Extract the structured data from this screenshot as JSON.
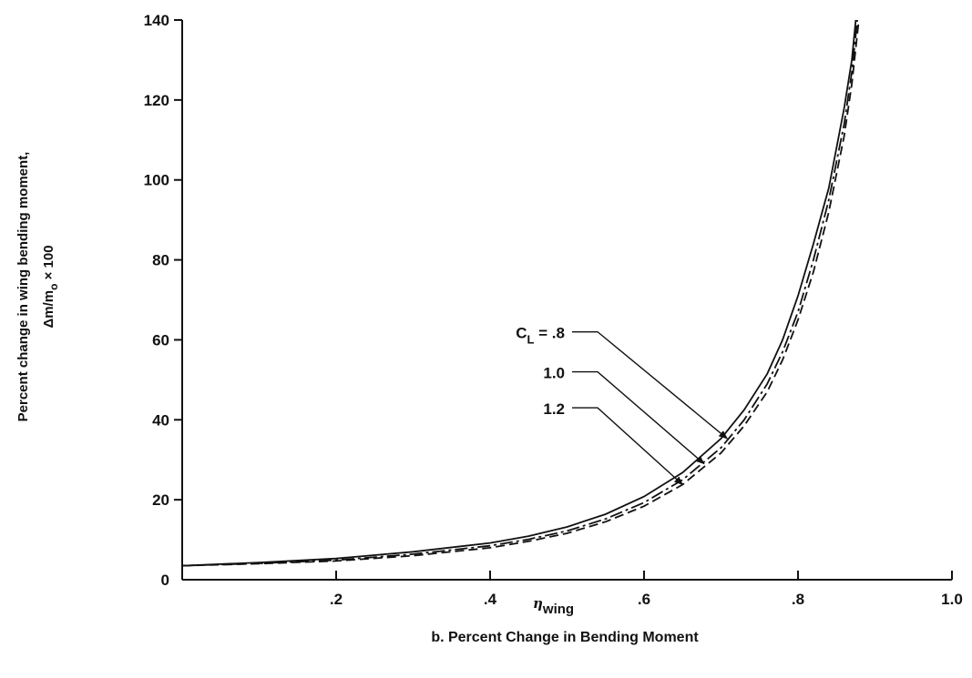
{
  "chart_data": {
    "type": "line",
    "xlim": [
      0,
      1.0
    ],
    "ylim": [
      0,
      140
    ],
    "x_ticks": [
      0.2,
      0.4,
      0.6,
      0.8,
      1.0
    ],
    "x_tick_labels": [
      ".2",
      ".4",
      ".6",
      ".8",
      "1.0"
    ],
    "y_ticks": [
      0,
      20,
      40,
      60,
      80,
      100,
      120,
      140
    ],
    "y_tick_labels": [
      "0",
      "20",
      "40",
      "60",
      "80",
      "100",
      "120",
      "140"
    ],
    "xlabel": {
      "symbol": "η",
      "subscript": "wing"
    },
    "ylabel": {
      "line1": "Percent change in wing bending moment,",
      "line2": "Δm/m",
      "line2_sub": "o",
      "line2_suffix": " × 100"
    },
    "caption": "b. Percent Change in Bending Moment",
    "grid": false,
    "series": [
      {
        "name": "C_L = .8",
        "label_prefix": "C",
        "label_sub": "L",
        "label_value": " = .8",
        "style": "solid",
        "x": [
          0,
          0.1,
          0.2,
          0.3,
          0.4,
          0.45,
          0.5,
          0.55,
          0.6,
          0.65,
          0.7,
          0.73,
          0.76,
          0.78,
          0.8,
          0.82,
          0.84,
          0.86,
          0.87,
          0.875
        ],
        "y": [
          3.5,
          4.3,
          5.3,
          7.0,
          9.2,
          10.9,
          13.2,
          16.4,
          20.8,
          26.8,
          35.3,
          42.5,
          51.5,
          60,
          71,
          84,
          98,
          118,
          130,
          140
        ]
      },
      {
        "name": "1.0",
        "label_prefix": "",
        "label_sub": "",
        "label_value": "1.0",
        "style": "dashdot",
        "x": [
          0,
          0.1,
          0.2,
          0.3,
          0.4,
          0.45,
          0.5,
          0.55,
          0.6,
          0.65,
          0.7,
          0.73,
          0.76,
          0.78,
          0.8,
          0.82,
          0.84,
          0.86,
          0.87,
          0.877
        ],
        "y": [
          3.5,
          4.1,
          4.9,
          6.4,
          8.5,
          10.1,
          12.2,
          15.2,
          19.3,
          25.0,
          33.0,
          40.0,
          49.0,
          57.0,
          67.0,
          80.0,
          95.0,
          114.0,
          127.0,
          140
        ]
      },
      {
        "name": "1.2",
        "label_prefix": "",
        "label_sub": "",
        "label_value": "1.2",
        "style": "dashed",
        "x": [
          0,
          0.1,
          0.2,
          0.3,
          0.4,
          0.45,
          0.5,
          0.55,
          0.6,
          0.65,
          0.7,
          0.73,
          0.76,
          0.78,
          0.8,
          0.82,
          0.84,
          0.86,
          0.87,
          0.879
        ],
        "y": [
          3.5,
          4.0,
          4.7,
          6.0,
          8.0,
          9.6,
          11.6,
          14.5,
          18.4,
          23.8,
          31.7,
          38.5,
          47.0,
          55.0,
          65.0,
          77.0,
          92.0,
          111.0,
          124.0,
          140
        ]
      }
    ],
    "annotations": [
      {
        "series": 0,
        "text_x": 0.2,
        "text_y": 62,
        "arrow_to_x": 0.708,
        "arrow_to_y": 35.3
      },
      {
        "series": 1,
        "text_x": 0.2,
        "text_y": 52,
        "arrow_to_x": 0.678,
        "arrow_to_y": 29.0
      },
      {
        "series": 2,
        "text_x": 0.2,
        "text_y": 43,
        "arrow_to_x": 0.65,
        "arrow_to_y": 23.8
      }
    ]
  }
}
